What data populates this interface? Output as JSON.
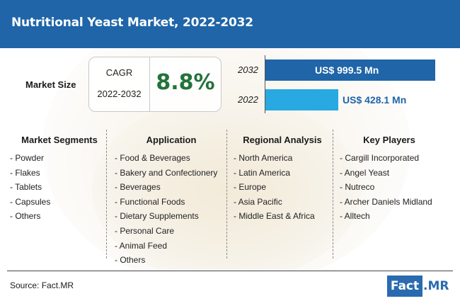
{
  "title": "Nutritional Yeast Market, 2022-2032",
  "market_size_label": "Market Size",
  "cagr": {
    "label": "CAGR",
    "years": "2022-2032",
    "value": "8.8%"
  },
  "colors": {
    "header": "#1f65a8",
    "bar_2032": "#1f65a8",
    "bar_2022": "#29a9e1",
    "cagr_value": "#23733a"
  },
  "chart_data": {
    "type": "bar",
    "orientation": "horizontal",
    "categories": [
      "2032",
      "2022"
    ],
    "values": [
      999.5,
      428.1
    ],
    "labels": [
      "US$ 999.5 Mn",
      "US$ 428.1 Mn"
    ],
    "unit": "US$ Mn"
  },
  "columns": [
    {
      "title": "Market Segments",
      "items": [
        "- Powder",
        "- Flakes",
        "- Tablets",
        "- Capsules",
        "- Others"
      ]
    },
    {
      "title": "Application",
      "items": [
        "- Food & Beverages",
        "- Bakery and Confectionery",
        "- Beverages",
        "- Functional Foods",
        "- Dietary Supplements",
        "- Personal Care",
        "- Animal Feed",
        "- Others"
      ]
    },
    {
      "title": "Regional Analysis",
      "items": [
        "- North America",
        "- Latin America",
        "- Europe",
        "- Asia Pacific",
        "- Middle East & Africa"
      ]
    },
    {
      "title": "Key Players",
      "items": [
        "- Cargill Incorporated",
        "- Angel Yeast",
        "- Nutreco",
        "- Archer Daniels Midland",
        "- Alltech"
      ]
    }
  ],
  "source": "Source: Fact.MR",
  "logo": {
    "part1": "Fact",
    "part2": ".MR"
  }
}
